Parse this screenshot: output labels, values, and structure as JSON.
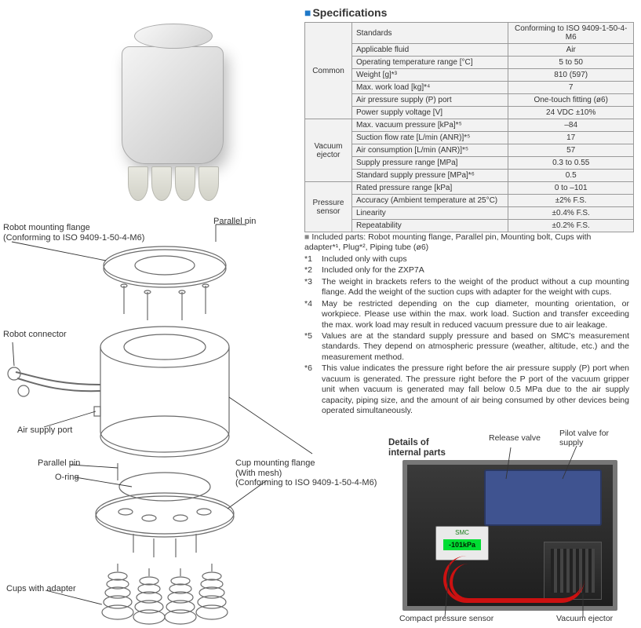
{
  "spec_heading": "Specifications",
  "spec_groups": [
    {
      "name": "Common",
      "rows": [
        {
          "param": "Standards",
          "value": "Conforming to ISO 9409-1-50-4-M6"
        },
        {
          "param": "Applicable fluid",
          "value": "Air"
        },
        {
          "param": "Operating temperature range [°C]",
          "value": "5 to 50"
        },
        {
          "param": "Weight [g]*³",
          "value": "810 (597)"
        },
        {
          "param": "Max. work load [kg]*⁴",
          "value": "7"
        },
        {
          "param": "Air pressure supply (P) port",
          "value": "One-touch fitting (ø6)"
        },
        {
          "param": "Power supply voltage [V]",
          "value": "24 VDC ±10%"
        }
      ]
    },
    {
      "name": "Vacuum ejector",
      "rows": [
        {
          "param": "Max. vacuum pressure [kPa]*⁵",
          "value": "–84"
        },
        {
          "param": "Suction flow rate [L/min (ANR)]*⁵",
          "value": "17"
        },
        {
          "param": "Air consumption [L/min (ANR)]*⁵",
          "value": "57"
        },
        {
          "param": "Supply pressure range [MPa]",
          "value": "0.3 to 0.55"
        },
        {
          "param": "Standard supply pressure [MPa]*⁶",
          "value": "0.5"
        }
      ]
    },
    {
      "name": "Pressure sensor",
      "rows": [
        {
          "param": "Rated pressure range [kPa]",
          "value": "0 to –101"
        },
        {
          "param": "Accuracy (Ambient temperature at 25°C)",
          "value": "±2% F.S."
        },
        {
          "param": "Linearity",
          "value": "±0.4% F.S."
        },
        {
          "param": "Repeatability",
          "value": "±0.2% F.S."
        }
      ]
    }
  ],
  "included": "Included parts: Robot mounting flange, Parallel pin, Mounting bolt, Cups with adapter*¹, Plug*², Piping tube (ø6)",
  "notes": [
    {
      "key": "*1",
      "text": "Included only with cups"
    },
    {
      "key": "*2",
      "text": "Included only for the ZXP7A"
    },
    {
      "key": "*3",
      "text": "The weight in brackets refers to the weight of the product without a cup mounting flange. Add the weight of the suction cups with adapter for the weight with cups."
    },
    {
      "key": "*4",
      "text": "May be restricted depending on the cup diameter, mounting orientation, or workpiece. Please use within the max. work load. Suction and transfer exceeding the max. work load may result in reduced vacuum pressure due to air leakage."
    },
    {
      "key": "*5",
      "text": "Values are at the standard supply pressure and based on SMC's measurement standards. They depend on atmospheric pressure (weather, altitude, etc.) and the measurement method."
    },
    {
      "key": "*6",
      "text": "This value indicates the pressure right before the air pressure supply (P) port when vacuum is generated. The pressure right before the P port of the vacuum gripper unit when vacuum is generated may fall below 0.5 MPa due to the air supply capacity, piping size, and the amount of air being consumed by other devices being operated simultaneously."
    }
  ],
  "diagram_labels": {
    "mount_flange": "Robot mounting flange",
    "mount_flange_sub": "(Conforming to ISO 9409-1-50-4-M6)",
    "parallel_pin_top": "Parallel pin",
    "robot_connector": "Robot connector",
    "air_supply": "Air supply port",
    "parallel_pin_bottom": "Parallel pin",
    "oring": "O-ring",
    "cups_adapter": "Cups with adapter",
    "cup_flange": "Cup mounting flange",
    "cup_flange_sub1": "(With mesh)",
    "cup_flange_sub2": "(Conforming to ISO 9409-1-50-4-M6)"
  },
  "internal": {
    "title_l1": "Details of",
    "title_l2": "internal parts",
    "release_valve": "Release valve",
    "pilot_valve": "Pilot valve for supply",
    "sensor_brand": "SMC",
    "sensor_lcd": "-101kPa",
    "compact_sensor": "Compact pressure sensor",
    "vac_ejector": "Vacuum ejector"
  },
  "colors": {
    "accent": "#1e78c8",
    "table_border": "#999999",
    "table_bg": "#f2f2f2",
    "diagram_line": "#6a6a6a",
    "wire_red": "#cc1111",
    "pcb_blue": "#3f5390"
  }
}
